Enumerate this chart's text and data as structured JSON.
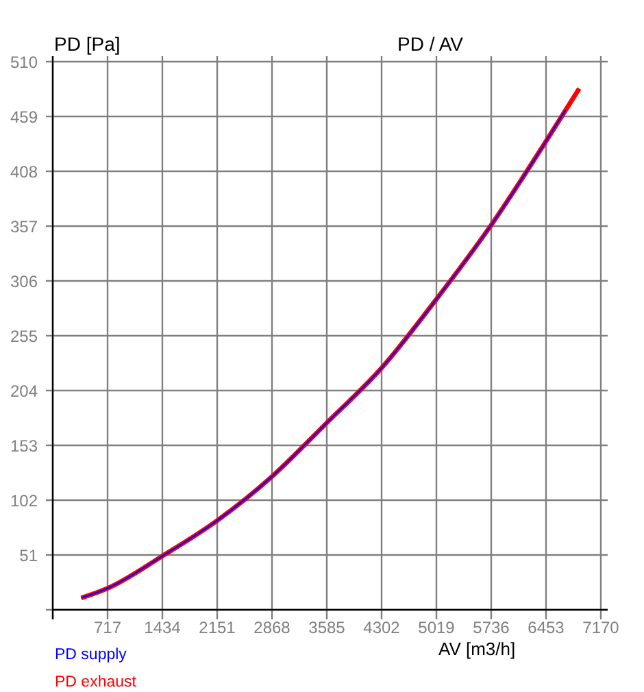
{
  "chart_data": {
    "type": "line",
    "title": "PD / AV",
    "xlabel": "AV [m3/h]",
    "ylabel": "PD [Pa]",
    "xlim": [
      0,
      7170
    ],
    "ylim": [
      0,
      510
    ],
    "xticks": [
      {
        "value": 0,
        "label": null
      },
      717,
      1434,
      2151,
      2868,
      3585,
      4302,
      5019,
      5736,
      6453,
      7170
    ],
    "yticks": [
      {
        "value": 0,
        "label": null
      },
      51,
      102,
      153,
      204,
      255,
      306,
      357,
      408,
      459,
      510
    ],
    "grid": true,
    "legend": "bottom left",
    "marker": "none",
    "line_style": "solid",
    "series": [
      {
        "name": "PD supply",
        "color": "#0000ff",
        "x": [
          373,
          717,
          1434,
          2151,
          2868,
          3585,
          4302,
          5019,
          5736,
          6453,
          6708
        ],
        "values": [
          11,
          20,
          50,
          83,
          124,
          174,
          225,
          289,
          358,
          436,
          465
        ]
      },
      {
        "name": "PD exhaust",
        "color": "#ff0000",
        "x": [
          373,
          717,
          1434,
          2151,
          2868,
          3585,
          4302,
          5019,
          5736,
          6453,
          6887
        ],
        "values": [
          11,
          20,
          50,
          83,
          124,
          174,
          225,
          289,
          358,
          436,
          485
        ]
      }
    ]
  }
}
